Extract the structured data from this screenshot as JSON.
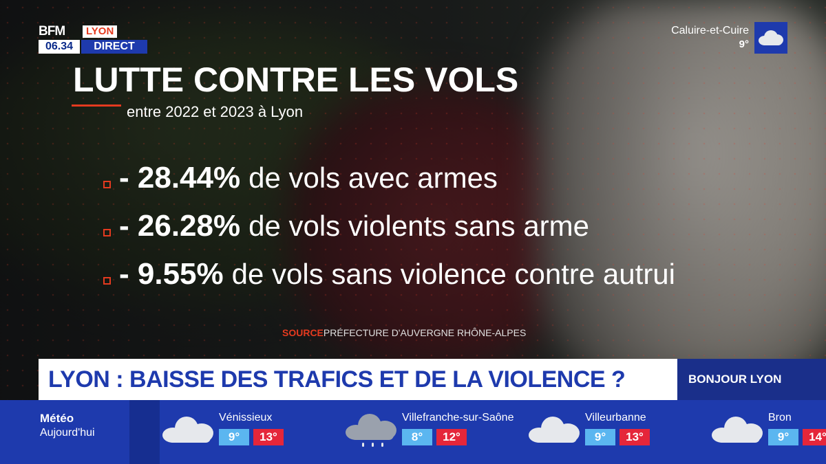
{
  "logo": {
    "brand": "BFM",
    "city": "LYON",
    "time": "06.34",
    "live": "DIRECT"
  },
  "weather_top": {
    "city": "Caluire-et-Cuire",
    "temp": "9°",
    "icon": "cloud-icon"
  },
  "graphic": {
    "title": "LUTTE CONTRE LES VOLS",
    "subtitle": "entre 2022 et 2023 à Lyon",
    "stats": [
      {
        "value": "- 28.44%",
        "label": "de vols avec armes"
      },
      {
        "value": "- 26.28%",
        "label": "de vols violents sans arme"
      },
      {
        "value": "- 9.55%",
        "label": "de vols sans violence contre autrui"
      }
    ],
    "source_label": "SOURCE",
    "source": "PRÉFECTURE D'AUVERGNE RHÔNE-ALPES"
  },
  "headline": "LYON : BAISSE DES TRAFICS ET DE LA VIOLENCE ?",
  "show": "BONJOUR LYON",
  "forecast": {
    "label": "Météo",
    "day": "Aujourd'hui",
    "cities": [
      {
        "name": "Vénissieux",
        "min": "9°",
        "max": "13°",
        "icon": "cloud-icon"
      },
      {
        "name": "Villefranche-sur-Saône",
        "min": "8°",
        "max": "12°",
        "icon": "rain-cloud-icon"
      },
      {
        "name": "Villeurbanne",
        "min": "9°",
        "max": "13°",
        "icon": "cloud-icon"
      },
      {
        "name": "Bron",
        "min": "9°",
        "max": "14°",
        "icon": "cloud-icon"
      }
    ]
  },
  "colors": {
    "accent_red": "#e43a1f",
    "brand_blue": "#1e3aad",
    "min_temp": "#5bb6f0",
    "max_temp": "#e5263a"
  }
}
